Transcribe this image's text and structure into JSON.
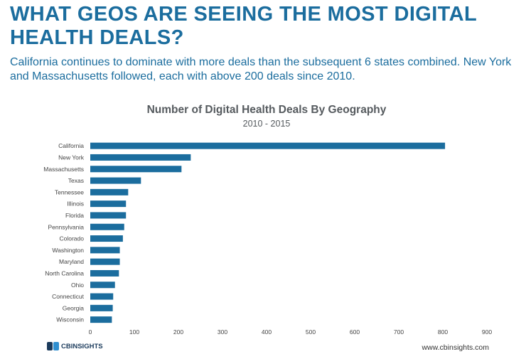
{
  "header": {
    "title": "WHAT GEOS ARE SEEING THE MOST DIGITAL HEALTH DEALS?",
    "subtitle": "California continues to dominate with more deals than the subsequent 6 states combined. New York and Massachusetts followed, each with above 200 deals since 2010."
  },
  "chart_data": {
    "type": "bar",
    "orientation": "horizontal",
    "title": "Number of Digital Health Deals By Geography",
    "subtitle": "2010 - 2015",
    "categories": [
      "California",
      "New York",
      "Massachusetts",
      "Texas",
      "Tennessee",
      "Illinois",
      "Florida",
      "Pennsylvania",
      "Colorado",
      "Washington",
      "Maryland",
      "North Carolina",
      "Ohio",
      "Connecticut",
      "Georgia",
      "Wisconsin"
    ],
    "values": [
      805,
      228,
      207,
      115,
      86,
      81,
      81,
      77,
      74,
      67,
      67,
      65,
      56,
      52,
      51,
      49
    ],
    "xlim": [
      0,
      900
    ],
    "xticks": [
      "0",
      "100",
      "200",
      "300",
      "400",
      "500",
      "600",
      "700",
      "800",
      "900"
    ],
    "xlabel": "",
    "ylabel": "",
    "grid": false,
    "bar_color": "#1b6d9e"
  },
  "footer": {
    "logo_text": "CBINSIGHTS",
    "url": "www.cbinsights.com"
  }
}
